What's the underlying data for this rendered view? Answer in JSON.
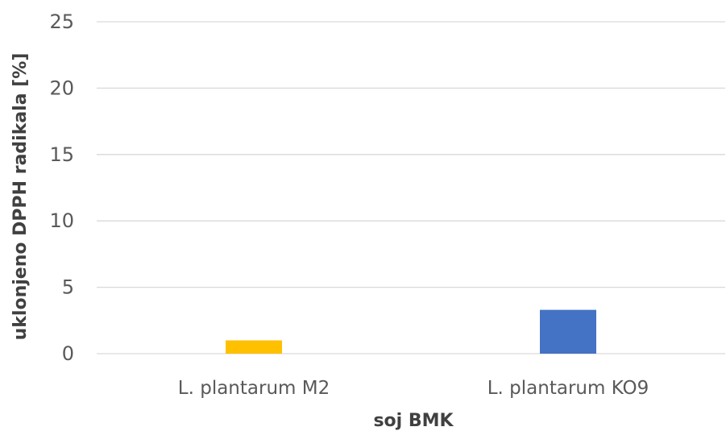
{
  "chart_data": {
    "type": "bar",
    "title": "",
    "xlabel": "soj BMK",
    "ylabel": "uklonjeno DPPH radikala [%]",
    "categories": [
      "L. plantarum M2",
      "L. plantarum KO9"
    ],
    "values": [
      1.0,
      3.3
    ],
    "bar_colors": [
      "#FFC000",
      "#4472C4"
    ],
    "ylim": [
      0,
      25
    ],
    "yticks": [
      0,
      5,
      10,
      15,
      20,
      25
    ],
    "grid": true,
    "legend": "none",
    "gridline_color": "#D9D9D9"
  }
}
